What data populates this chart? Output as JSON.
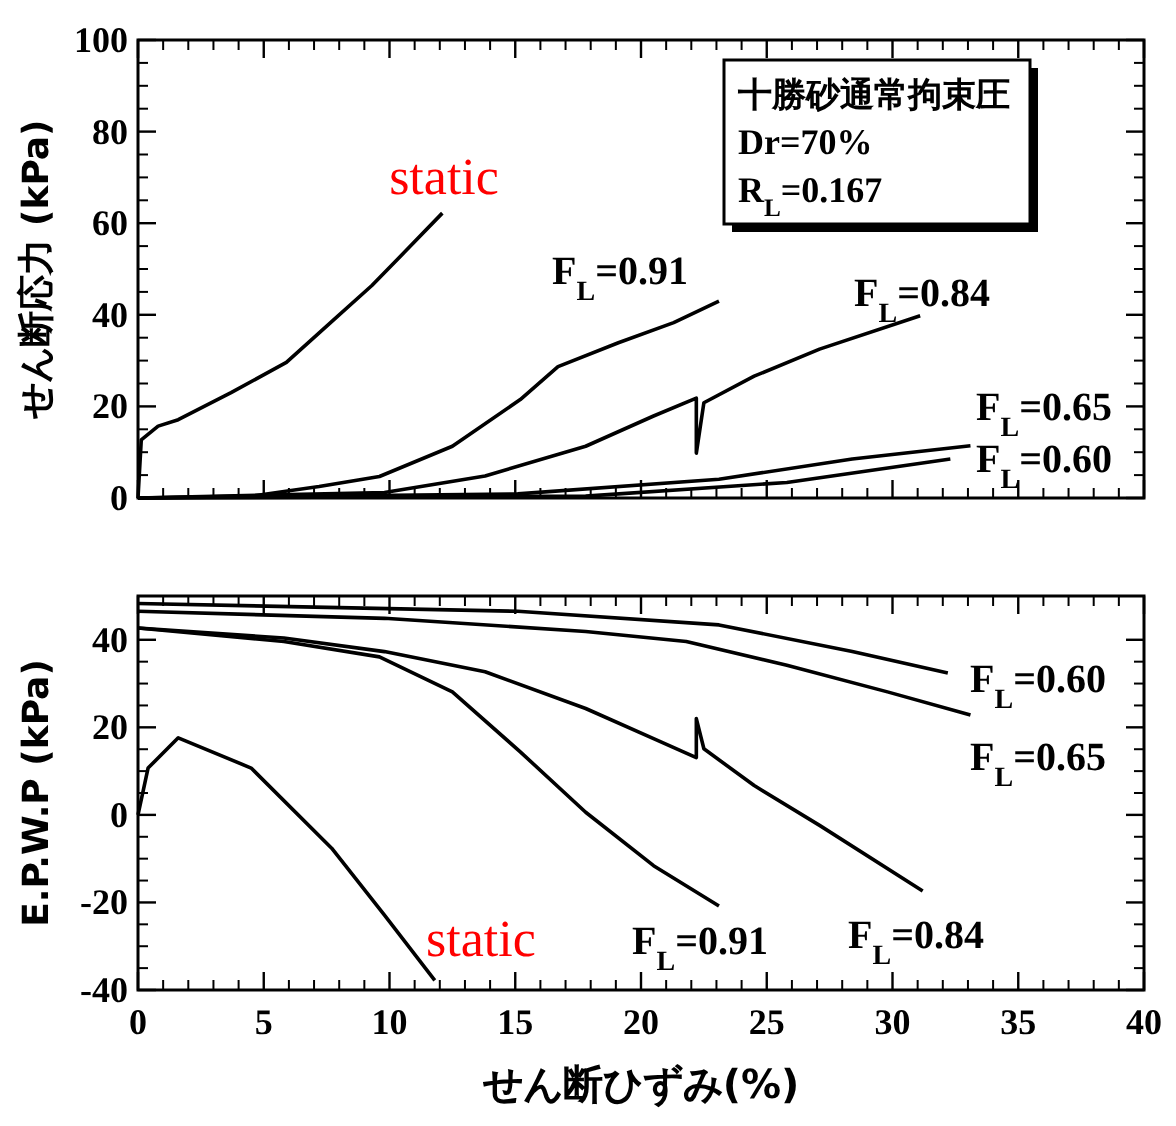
{
  "chart_data": [
    {
      "type": "line",
      "ylabel": "せん断応力 (kPa)",
      "xlim": [
        0,
        40
      ],
      "xticks": [
        0,
        5,
        10,
        15,
        20,
        25,
        30,
        35,
        40
      ],
      "ylim": [
        0,
        100
      ],
      "yticks": [
        0,
        20,
        40,
        60,
        80,
        100
      ],
      "tick_labels": "y",
      "legend": "right",
      "annotations": [
        "十勝砂通常拘束圧",
        "Dr=70%",
        "R$_{L}$=0.167"
      ],
      "series": [
        {
          "name": "static",
          "color": "#000000",
          "x": [
            0,
            0.13,
            0.8,
            1.6,
            3.7,
            5.9,
            7.8,
            9.3,
            10.6,
            12.1
          ],
          "values": [
            0,
            12.7,
            15.7,
            17.1,
            23,
            29.6,
            39,
            46.4,
            53.7,
            62.2
          ]
        },
        {
          "name": "F$_{L}$=0.91",
          "color": "#000000",
          "x": [
            0,
            4.5,
            7.2,
            9.6,
            12.5,
            15.2,
            16.7,
            19.1,
            21.3,
            23.1
          ],
          "values": [
            0,
            0.4,
            2.5,
            4.7,
            11.3,
            21.5,
            28.7,
            33.9,
            38.3,
            43
          ]
        },
        {
          "name": "F$_{L}$=0.84",
          "color": "#000000",
          "x": [
            0,
            9.8,
            13.8,
            17.8,
            20.5,
            22.2,
            22.2,
            22.5,
            24.5,
            27.1,
            31.1
          ],
          "values": [
            0,
            1.2,
            4.8,
            11.3,
            17.9,
            21.8,
            9.8,
            20.8,
            26.6,
            32.5,
            39.8
          ]
        },
        {
          "name": "F$_{L}$=0.65",
          "color": "#000000",
          "x": [
            0,
            15.1,
            23.1,
            28.4,
            33.1
          ],
          "values": [
            0,
            0.9,
            4.1,
            8.5,
            11.4
          ]
        },
        {
          "name": "F$_{L}$=0.60",
          "color": "#000000",
          "x": [
            0,
            17.8,
            25.8,
            32.3
          ],
          "values": [
            0,
            0.4,
            3.4,
            8.5
          ]
        }
      ]
    },
    {
      "type": "line",
      "xlabel": "せん断ひずみ(%)",
      "ylabel": "E.P.W.P (kPa)",
      "xlim": [
        0,
        40
      ],
      "xticks": [
        0,
        5,
        10,
        15,
        20,
        25,
        30,
        35,
        40
      ],
      "ylim": [
        -40,
        50
      ],
      "yticks": [
        -40,
        -20,
        0,
        20,
        40
      ],
      "legend": "right",
      "series": [
        {
          "name": "F$_{L}$=0.60",
          "color": "#000000",
          "x": [
            0,
            15.1,
            23.1,
            28.4,
            32.2
          ],
          "values": [
            48.3,
            46.5,
            43.4,
            37.3,
            32.4
          ]
        },
        {
          "name": "F$_{L}$=0.65",
          "color": "#000000",
          "x": [
            0,
            9.8,
            17.8,
            21.8,
            25.8,
            29.8,
            33.1
          ],
          "values": [
            46.5,
            44.9,
            41.9,
            39.6,
            34.2,
            28.1,
            22.8
          ]
        },
        {
          "name": "F$_{L}$=0.84",
          "color": "#000000",
          "x": [
            0,
            5.8,
            9.8,
            13.8,
            17.8,
            20.5,
            22.2,
            22.2,
            22.5,
            24.5,
            27.1,
            31.2
          ],
          "values": [
            42.7,
            40.4,
            37.3,
            32.7,
            24.3,
            17.4,
            13.1,
            22,
            15.1,
            6.7,
            -2.4,
            -17.4
          ]
        },
        {
          "name": "F$_{L}$=0.91",
          "color": "#000000",
          "x": [
            0,
            5.8,
            9.6,
            12.5,
            15.2,
            17.8,
            20.5,
            23.1
          ],
          "values": [
            42.7,
            39.6,
            36.1,
            28.1,
            14.4,
            0.6,
            -11.6,
            -20.8
          ]
        },
        {
          "name": "static",
          "color": "#000000",
          "x": [
            0,
            0.4,
            1.6,
            4.5,
            7.7,
            9.8,
            11.8
          ],
          "values": [
            0,
            10.7,
            17.6,
            10.7,
            -7.6,
            -22.9,
            -37.8
          ]
        }
      ]
    }
  ]
}
